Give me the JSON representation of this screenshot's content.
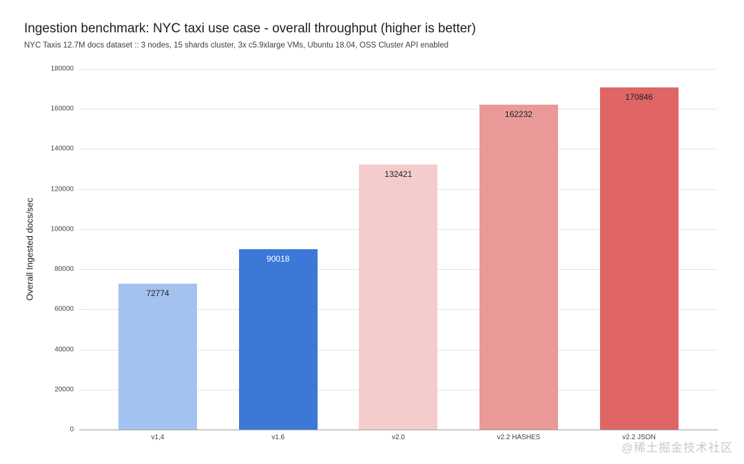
{
  "header": {
    "title": "Ingestion benchmark: NYC taxi use case - overall throughput (higher is better)",
    "subtitle": "NYC Taxis 12.7M docs dataset :: 3 nodes, 15 shards cluster, 3x c5.9xlarge VMs, Ubuntu 18.04, OSS Cluster API enabled"
  },
  "chart_data": {
    "type": "bar",
    "title": "Ingestion benchmark: NYC taxi use case - overall throughput (higher is better)",
    "subtitle": "NYC Taxis 12.7M docs dataset :: 3 nodes, 15 shards cluster, 3x c5.9xlarge VMs, Ubuntu 18.04, OSS Cluster API enabled",
    "categories": [
      "v1,4",
      "v1.6",
      "v2.0",
      "v2.2 HASHES",
      "v2.2 JSON"
    ],
    "values": [
      72774,
      90018,
      132421,
      162232,
      170846
    ],
    "value_labels": [
      "72774",
      "90018",
      "132421",
      "162232",
      "170846"
    ],
    "bar_colors": [
      "#a4c2f0",
      "#3c78d8",
      "#f4cccc",
      "#ea9999",
      "#e06666"
    ],
    "value_label_colors": [
      "#212121",
      "#ffffff",
      "#212121",
      "#212121",
      "#212121"
    ],
    "xlabel": "",
    "ylabel": "Overall Ingested docs/sec",
    "ylim": [
      0,
      180000
    ],
    "yticks": [
      0,
      20000,
      40000,
      60000,
      80000,
      100000,
      120000,
      140000,
      160000,
      180000
    ],
    "grid": "horizontal",
    "legend": "none",
    "colors": {
      "gridline": "#e3e3e3",
      "zero_line": "#9e9e9e",
      "tick_text": "#444444"
    }
  },
  "watermark": {
    "text": "@稀土掘金技术社区",
    "color": "#c9c9c9"
  }
}
